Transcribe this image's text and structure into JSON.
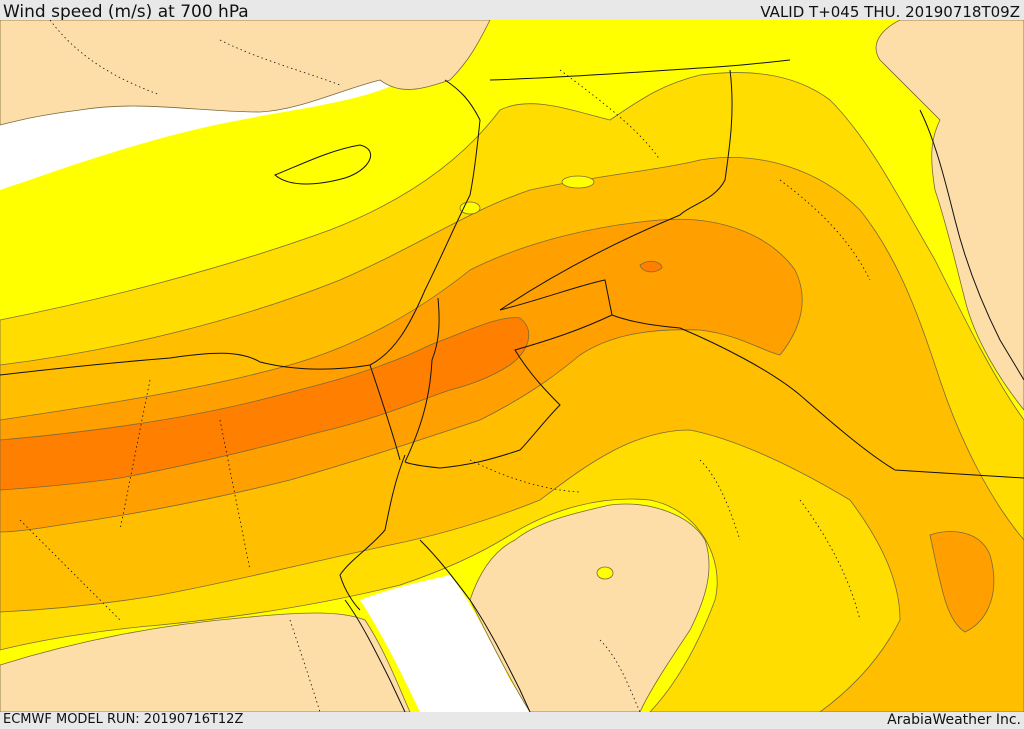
{
  "header": {
    "title": "Wind speed (m/s) at 700 hPa",
    "valid": "VALID T+045 THU. 20190718T09Z"
  },
  "footer": {
    "model_run": "ECMWF MODEL RUN: 20190716T12Z",
    "credit": "ArabiaWeather Inc."
  },
  "colors": {
    "sea_no_data": "#ffffff",
    "band_lowest": "#fddea8",
    "band_low": "#ffff00",
    "band_mid": "#ffdd00",
    "band_high": "#ffbe00",
    "band_higher": "#ff9f00",
    "band_highest": "#ff7f00",
    "contour": "#7a6a3a",
    "border": "#111111"
  }
}
